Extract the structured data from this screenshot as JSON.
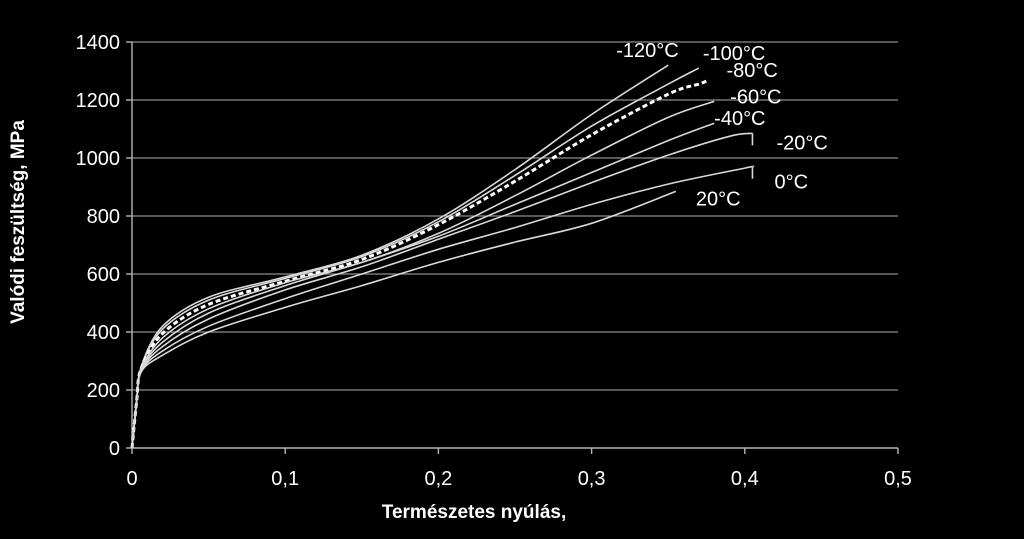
{
  "chart_data": {
    "type": "line",
    "title": "",
    "xlabel": "Természetes nyúlás,",
    "ylabel": "Valódi feszültség, MPa",
    "xlim": [
      0,
      0.5
    ],
    "ylim": [
      0,
      1400
    ],
    "x_ticks": [
      "0",
      "0,1",
      "0,2",
      "0,3",
      "0,4",
      "0,5"
    ],
    "y_ticks": [
      "0",
      "200",
      "400",
      "600",
      "800",
      "1000",
      "1200",
      "1400"
    ],
    "grid": "horizontal",
    "legend": "none",
    "colors": {
      "background": "#000000",
      "lines": "#d9d9d9",
      "grid": "#8c8c8c",
      "text": "#ffffff"
    },
    "series": [
      {
        "name": "-120°C",
        "points": [
          [
            0,
            0
          ],
          [
            0.003,
            160
          ],
          [
            0.006,
            280
          ],
          [
            0.02,
            420
          ],
          [
            0.05,
            520
          ],
          [
            0.1,
            590
          ],
          [
            0.15,
            665
          ],
          [
            0.2,
            790
          ],
          [
            0.25,
            960
          ],
          [
            0.3,
            1150
          ],
          [
            0.35,
            1320
          ]
        ]
      },
      {
        "name": "-100°C",
        "points": [
          [
            0,
            0
          ],
          [
            0.003,
            160
          ],
          [
            0.006,
            278
          ],
          [
            0.02,
            410
          ],
          [
            0.05,
            510
          ],
          [
            0.1,
            585
          ],
          [
            0.15,
            660
          ],
          [
            0.2,
            780
          ],
          [
            0.25,
            940
          ],
          [
            0.3,
            1110
          ],
          [
            0.35,
            1255
          ],
          [
            0.37,
            1310
          ]
        ]
      },
      {
        "name": "-80°C",
        "dashed": true,
        "points": [
          [
            0,
            0
          ],
          [
            0.003,
            160
          ],
          [
            0.006,
            275
          ],
          [
            0.02,
            395
          ],
          [
            0.05,
            495
          ],
          [
            0.1,
            575
          ],
          [
            0.15,
            650
          ],
          [
            0.2,
            770
          ],
          [
            0.25,
            920
          ],
          [
            0.3,
            1080
          ],
          [
            0.35,
            1220
          ],
          [
            0.37,
            1255
          ],
          [
            0.375,
            1265
          ]
        ]
      },
      {
        "name": "-60°C",
        "points": [
          [
            0,
            0
          ],
          [
            0.003,
            160
          ],
          [
            0.006,
            272
          ],
          [
            0.02,
            380
          ],
          [
            0.05,
            480
          ],
          [
            0.1,
            570
          ],
          [
            0.15,
            640
          ],
          [
            0.2,
            740
          ],
          [
            0.25,
            870
          ],
          [
            0.3,
            1010
          ],
          [
            0.35,
            1140
          ],
          [
            0.38,
            1195
          ]
        ]
      },
      {
        "name": "-40°C",
        "points": [
          [
            0,
            0
          ],
          [
            0.003,
            160
          ],
          [
            0.006,
            270
          ],
          [
            0.02,
            365
          ],
          [
            0.05,
            465
          ],
          [
            0.1,
            560
          ],
          [
            0.15,
            640
          ],
          [
            0.2,
            730
          ],
          [
            0.25,
            840
          ],
          [
            0.3,
            950
          ],
          [
            0.35,
            1060
          ],
          [
            0.38,
            1120
          ]
        ]
      },
      {
        "name": "-20°C",
        "points": [
          [
            0,
            0
          ],
          [
            0.003,
            160
          ],
          [
            0.006,
            268
          ],
          [
            0.02,
            350
          ],
          [
            0.05,
            445
          ],
          [
            0.1,
            545
          ],
          [
            0.15,
            625
          ],
          [
            0.2,
            720
          ],
          [
            0.25,
            815
          ],
          [
            0.3,
            915
          ],
          [
            0.35,
            1010
          ],
          [
            0.39,
            1075
          ],
          [
            0.405,
            1085
          ]
        ]
      },
      {
        "name": "0°C",
        "points": [
          [
            0,
            0
          ],
          [
            0.003,
            160
          ],
          [
            0.006,
            265
          ],
          [
            0.02,
            335
          ],
          [
            0.05,
            420
          ],
          [
            0.1,
            515
          ],
          [
            0.15,
            600
          ],
          [
            0.2,
            685
          ],
          [
            0.25,
            760
          ],
          [
            0.3,
            840
          ],
          [
            0.35,
            910
          ],
          [
            0.4,
            965
          ],
          [
            0.405,
            970
          ]
        ]
      },
      {
        "name": "20°C",
        "points": [
          [
            0,
            0
          ],
          [
            0.003,
            160
          ],
          [
            0.006,
            262
          ],
          [
            0.02,
            320
          ],
          [
            0.05,
            400
          ],
          [
            0.1,
            485
          ],
          [
            0.15,
            560
          ],
          [
            0.2,
            640
          ],
          [
            0.25,
            710
          ],
          [
            0.3,
            775
          ],
          [
            0.355,
            885
          ]
        ]
      }
    ],
    "series_labels": [
      "-120°C",
      "-100°C",
      "-80°C",
      "-60°C",
      "-40°C",
      "-20°C",
      "0°C",
      "20°C"
    ]
  }
}
